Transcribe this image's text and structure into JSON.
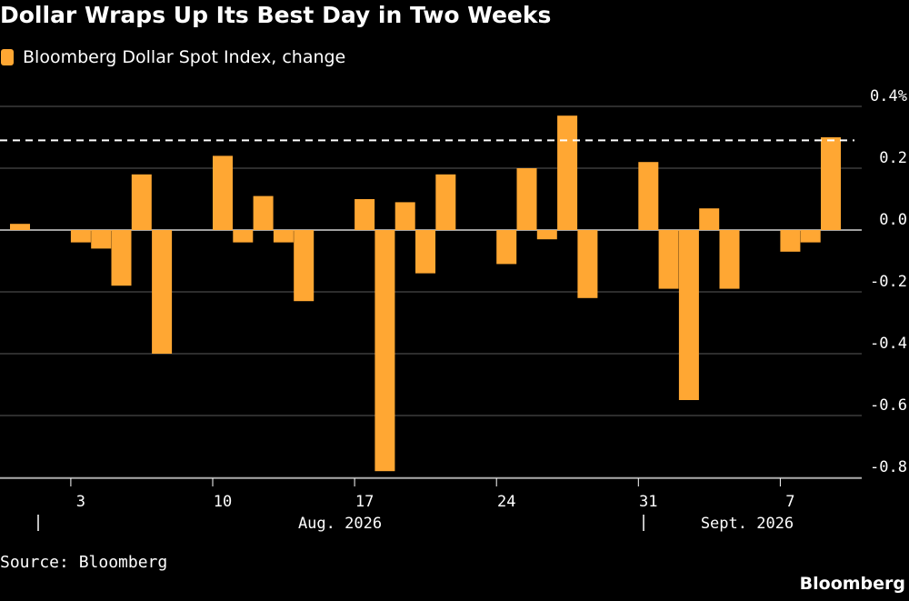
{
  "title": "Dollar Wraps Up Its Best Day in Two Weeks",
  "legend": {
    "label": "Bloomberg Dollar Spot Index, change",
    "color": "#FFA733"
  },
  "source": "Source: Bloomberg",
  "brand": "Bloomberg",
  "colors": {
    "background": "#000000",
    "bar": "#FFA733",
    "grid": "#5a5a5a",
    "text": "#ffffff"
  },
  "chart_data": {
    "type": "bar",
    "title": "Dollar Wraps Up Its Best Day in Two Weeks",
    "ylabel": "",
    "xlabel": "",
    "ylim": [
      -0.8,
      0.4
    ],
    "y_ticks": [
      "0.4%",
      "0.2",
      "0.0",
      "-0.2",
      "-0.4",
      "-0.6",
      "-0.8"
    ],
    "y_tick_values": [
      0.4,
      0.2,
      0.0,
      -0.2,
      -0.4,
      -0.6,
      -0.8
    ],
    "x_tick_labels": [
      "3",
      "10",
      "17",
      "24",
      "31",
      "7"
    ],
    "x_tick_dates": [
      "2026-08-03",
      "2026-08-10",
      "2026-08-17",
      "2026-08-24",
      "2026-08-31",
      "2026-09-07"
    ],
    "month_labels": [
      "Aug. 2026",
      "Sept. 2026"
    ],
    "reference_line": {
      "value": 0.29,
      "style": "dashed"
    },
    "grid": true,
    "legend_position": "top-left",
    "axis_side": "right",
    "series": [
      {
        "name": "Bloomberg Dollar Spot Index, change",
        "dates": [
          "2026-07-31",
          "2026-08-03",
          "2026-08-04",
          "2026-08-05",
          "2026-08-06",
          "2026-08-07",
          "2026-08-10",
          "2026-08-11",
          "2026-08-12",
          "2026-08-13",
          "2026-08-14",
          "2026-08-17",
          "2026-08-18",
          "2026-08-19",
          "2026-08-20",
          "2026-08-21",
          "2026-08-24",
          "2026-08-25",
          "2026-08-26",
          "2026-08-27",
          "2026-08-28",
          "2026-08-31",
          "2026-09-01",
          "2026-09-02",
          "2026-09-03",
          "2026-09-04",
          "2026-09-07",
          "2026-09-08",
          "2026-09-09",
          "2026-09-10"
        ],
        "values": [
          0.02,
          -0.04,
          -0.06,
          -0.18,
          0.18,
          -0.4,
          0.24,
          -0.04,
          0.11,
          -0.04,
          -0.23,
          0.1,
          -0.78,
          0.09,
          -0.14,
          0.18,
          -0.11,
          0.2,
          -0.03,
          0.37,
          -0.22,
          0.22,
          -0.19,
          -0.55,
          0.07,
          -0.19,
          -0.07,
          -0.04,
          0.3,
          0.0
        ]
      }
    ]
  }
}
